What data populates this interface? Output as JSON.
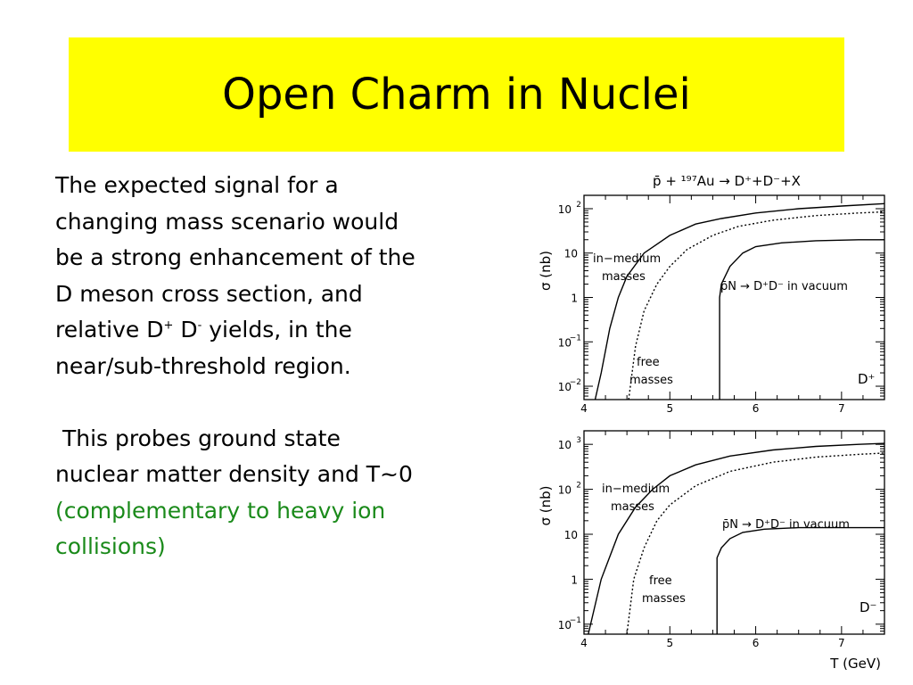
{
  "slide": {
    "title": "Open Charm in Nuclei",
    "para1": {
      "line1": "The expected signal for a",
      "line2": "changing mass scenario would",
      "line3": "be a strong enhancement of the",
      "line4": "D meson cross section, and",
      "line5_pre": "relative D",
      "sup_plus": "+",
      "mid": " D",
      "sup_minus": "-",
      "line5_post": " yields, in the",
      "line6": "near/sub-threshold region."
    },
    "para2": {
      "line1": " This probes ground state",
      "line2": "nuclear matter density and T~0",
      "green1": "(complementary to heavy ion",
      "green2": "collisions)"
    },
    "accent": "#ffff00",
    "green": "#1a8a1a"
  },
  "chart_data": [
    {
      "type": "line",
      "title": "p̄ + ¹⁹⁷Au → D⁺+D⁻+X",
      "ylabel": "σ (nb)",
      "xlim": [
        4,
        7.5
      ],
      "ylim": [
        0.005,
        200
      ],
      "log_y": true,
      "x_ticks": [
        "4",
        "5",
        "6",
        "7"
      ],
      "y_ticks": [
        {
          "v": 0.01,
          "base": "10",
          "exp": "−2"
        },
        {
          "v": 0.1,
          "base": "10",
          "exp": "−1"
        },
        {
          "v": 1,
          "base": "1",
          "exp": ""
        },
        {
          "v": 10,
          "base": "10",
          "exp": ""
        },
        {
          "v": 100,
          "base": "10",
          "exp": "2"
        }
      ],
      "series": [
        {
          "style": "solid",
          "x": [
            4.13,
            4.2,
            4.3,
            4.4,
            4.5,
            4.7,
            5.0,
            5.3,
            5.6,
            6.0,
            6.5,
            7.0,
            7.5
          ],
          "y": [
            0.005,
            0.02,
            0.2,
            1,
            3,
            10,
            25,
            45,
            60,
            80,
            100,
            115,
            130
          ]
        },
        {
          "style": "dotted",
          "x": [
            4.52,
            4.6,
            4.7,
            4.85,
            5.0,
            5.2,
            5.5,
            5.8,
            6.2,
            6.7,
            7.2,
            7.5
          ],
          "y": [
            0.005,
            0.08,
            0.5,
            2,
            5,
            12,
            25,
            40,
            55,
            70,
            80,
            85
          ]
        },
        {
          "style": "solid",
          "x": [
            5.58,
            5.58,
            5.6,
            5.7,
            5.85,
            6.0,
            6.3,
            6.7,
            7.2,
            7.5
          ],
          "y": [
            0.005,
            1,
            2,
            5,
            10,
            14,
            17,
            19,
            20,
            20
          ]
        }
      ],
      "annotations": {
        "in_medium_1": "in−medium",
        "in_medium_2": "masses",
        "free_1": "free",
        "free_2": "masses",
        "vacuum": "p̄N → D⁺D⁻ in vacuum",
        "panel": "D⁺"
      }
    },
    {
      "type": "line",
      "ylabel": "σ (nb)",
      "xlabel": "T (GeV)",
      "xlim": [
        4,
        7.5
      ],
      "ylim": [
        0.06,
        2000
      ],
      "log_y": true,
      "x_ticks": [
        "4",
        "5",
        "6",
        "7"
      ],
      "y_ticks": [
        {
          "v": 0.1,
          "base": "10",
          "exp": "−1"
        },
        {
          "v": 1,
          "base": "1",
          "exp": ""
        },
        {
          "v": 10,
          "base": "10",
          "exp": ""
        },
        {
          "v": 100,
          "base": "10",
          "exp": "2"
        },
        {
          "v": 1000,
          "base": "10",
          "exp": "3"
        }
      ],
      "series": [
        {
          "style": "solid",
          "x": [
            4.05,
            4.2,
            4.4,
            4.6,
            4.8,
            5.0,
            5.3,
            5.7,
            6.2,
            6.7,
            7.2,
            7.5
          ],
          "y": [
            0.06,
            1,
            10,
            40,
            100,
            200,
            350,
            550,
            750,
            900,
            1000,
            1050
          ]
        },
        {
          "style": "dotted",
          "x": [
            4.5,
            4.58,
            4.7,
            4.85,
            5.0,
            5.3,
            5.7,
            6.2,
            6.7,
            7.2,
            7.5
          ],
          "y": [
            0.06,
            1,
            5,
            20,
            45,
            120,
            250,
            400,
            520,
            600,
            640
          ]
        },
        {
          "style": "solid",
          "x": [
            5.55,
            5.55,
            5.6,
            5.7,
            5.85,
            6.1,
            6.5,
            7.0,
            7.5
          ],
          "y": [
            0.06,
            3,
            5,
            8,
            11,
            13,
            14,
            14,
            14
          ]
        }
      ],
      "annotations": {
        "in_medium_1": "in−medium",
        "in_medium_2": "masses",
        "free_1": "free",
        "free_2": "masses",
        "vacuum": "p̄N → D⁺D⁻ in vacuum",
        "panel": "D⁻"
      }
    }
  ]
}
